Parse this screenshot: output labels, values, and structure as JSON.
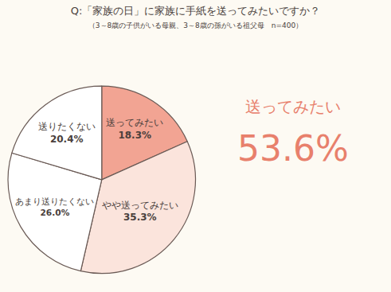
{
  "chart_data": {
    "type": "pie",
    "title": "Q:「家族の日」に家族に手紙を送ってみたいですか？",
    "subtitle": "（3～8歳の子供がいる母親、3～8歳の孫がいる祖父母　n=400）",
    "categories": [
      "送ってみたい",
      "やや送ってみたい",
      "あまり送りたくない",
      "送りたくない"
    ],
    "values": [
      18.3,
      35.3,
      26.0,
      20.4
    ],
    "value_labels": [
      "18.3%",
      "35.3%",
      "26.0%",
      "20.4%"
    ],
    "colors": [
      "#f2a493",
      "#fbe4dc",
      "#ffffff",
      "#ffffff"
    ],
    "data_labels": true,
    "annotations": [
      {
        "text": "送ってみたい"
      },
      {
        "text": "53.6%"
      }
    ]
  }
}
